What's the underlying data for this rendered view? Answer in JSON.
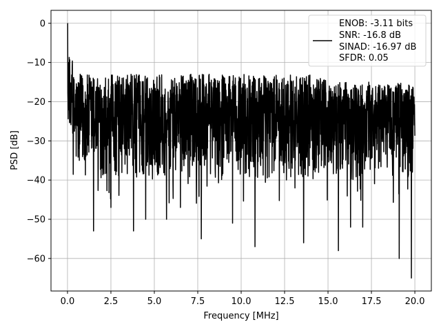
{
  "chart_data": {
    "type": "line",
    "title": "",
    "xlabel": "Frequency [MHz]",
    "ylabel": "PSD [dB]",
    "xlim": [
      -0.95,
      20.95
    ],
    "ylim": [
      -68.3,
      3.3
    ],
    "xticks": [
      0.0,
      2.5,
      5.0,
      7.5,
      10.0,
      12.5,
      15.0,
      17.5,
      20.0
    ],
    "xtick_labels": [
      "0.0",
      "2.5",
      "5.0",
      "7.5",
      "10.0",
      "12.5",
      "15.0",
      "17.5",
      "20.0"
    ],
    "yticks": [
      0,
      -10,
      -20,
      -30,
      -40,
      -50,
      -60
    ],
    "ytick_labels": [
      "0",
      "−10",
      "−20",
      "−30",
      "−40",
      "−50",
      "−60"
    ],
    "grid": true,
    "legend_position": "top-right",
    "series": [
      {
        "name": "ENOB: -3.11 bits\nSNR: -16.8 dB\nSINAD: -16.97 dB\nSFDR: 0.05",
        "color": "#000000",
        "x_range": [
          0,
          20
        ],
        "points": 2000,
        "envelope": {
          "upper_db": -13,
          "lower_db": -40,
          "typical_mean_db": -25
        },
        "peak": {
          "x": 0.0,
          "y": 0.0
        },
        "notable_dips": [
          {
            "x": 1.5,
            "y": -53
          },
          {
            "x": 2.5,
            "y": -47
          },
          {
            "x": 3.8,
            "y": -53
          },
          {
            "x": 4.5,
            "y": -50
          },
          {
            "x": 5.7,
            "y": -50
          },
          {
            "x": 6.5,
            "y": -47
          },
          {
            "x": 7.7,
            "y": -55
          },
          {
            "x": 9.5,
            "y": -51
          },
          {
            "x": 10.8,
            "y": -57
          },
          {
            "x": 13.6,
            "y": -56
          },
          {
            "x": 15.6,
            "y": -58
          },
          {
            "x": 16.3,
            "y": -52
          },
          {
            "x": 17.0,
            "y": -52
          },
          {
            "x": 19.1,
            "y": -60
          },
          {
            "x": 19.8,
            "y": -65
          }
        ]
      }
    ],
    "legend": [
      "ENOB: -3.11 bits",
      "SNR: -16.8 dB",
      "SINAD: -16.97 dB",
      "SFDR: 0.05"
    ]
  }
}
